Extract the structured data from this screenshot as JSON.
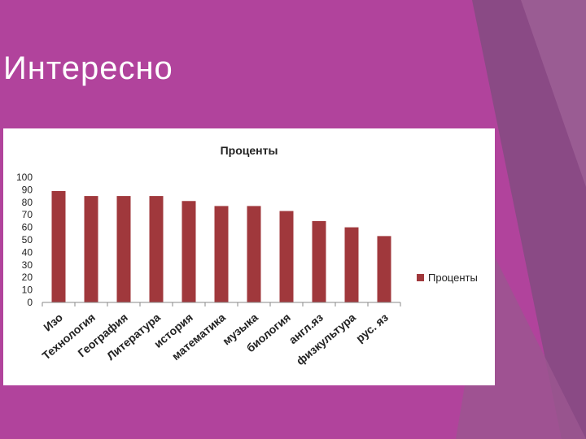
{
  "slide": {
    "title": "Интересно"
  },
  "colors": {
    "background": "#b1439c",
    "bar": "#a0383c",
    "accent_panel": "#8a4a85"
  },
  "chart_data": {
    "type": "bar",
    "title": "Проценты",
    "categories": [
      "Изо",
      "Технология",
      "География",
      "Литература",
      "история",
      "математика",
      "музыка",
      "биология",
      "англ.яз",
      "физкультура",
      "рус. яз"
    ],
    "series": [
      {
        "name": "Проценты",
        "values": [
          89,
          85,
          85,
          85,
          81,
          77,
          77,
          73,
          65,
          60,
          53
        ]
      }
    ],
    "ylim": [
      0,
      100
    ],
    "yticks": [
      0,
      10,
      20,
      30,
      40,
      50,
      60,
      70,
      80,
      90,
      100
    ],
    "xlabel": "",
    "ylabel": "",
    "grid": false,
    "legend_position": "right"
  }
}
